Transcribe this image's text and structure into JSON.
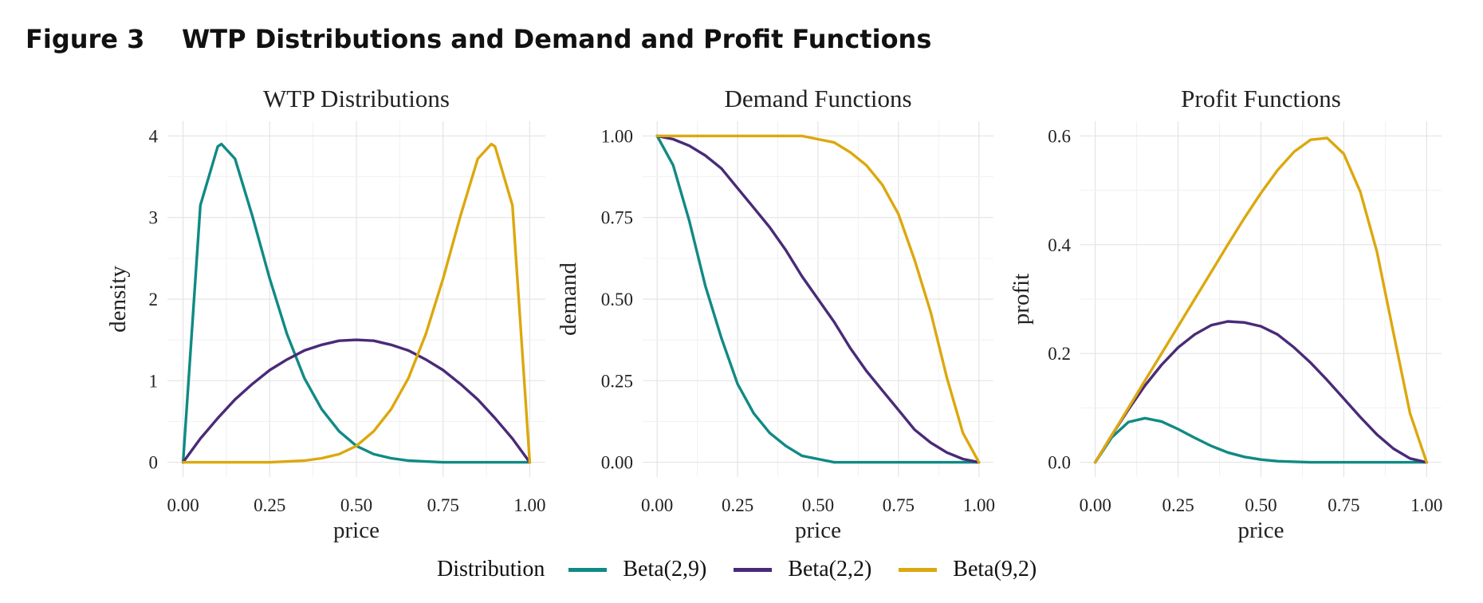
{
  "figure": {
    "number": "Figure 3",
    "title": "WTP Distributions and Demand and Profit Functions"
  },
  "legend": {
    "title": "Distribution",
    "entries": [
      {
        "label": "Beta(2,9)",
        "color": "#108A84"
      },
      {
        "label": "Beta(2,2)",
        "color": "#4A2A78"
      },
      {
        "label": "Beta(9,2)",
        "color": "#DCA80E"
      }
    ]
  },
  "chart_data": [
    {
      "type": "line",
      "title": "WTP Distributions",
      "xlabel": "price",
      "ylabel": "density",
      "xlim": [
        0,
        1
      ],
      "ylim": [
        0,
        4
      ],
      "xticks": [
        "0.00",
        "0.25",
        "0.50",
        "0.75",
        "1.00"
      ],
      "yticks": [
        "0",
        "1",
        "2",
        "3",
        "4"
      ],
      "grid": true,
      "x": [
        0,
        0.05,
        0.1,
        0.111,
        0.15,
        0.2,
        0.25,
        0.3,
        0.35,
        0.4,
        0.45,
        0.5,
        0.55,
        0.6,
        0.65,
        0.7,
        0.75,
        0.8,
        0.85,
        0.889,
        0.9,
        0.95,
        1
      ],
      "series": [
        {
          "name": "Beta(2,9)",
          "color": "#108A84",
          "values": [
            0,
            3.15,
            3.87,
            3.9,
            3.72,
            3.02,
            2.25,
            1.57,
            1.03,
            0.65,
            0.38,
            0.2,
            0.1,
            0.05,
            0.02,
            0.01,
            0.0,
            0.0,
            0.0,
            0.0,
            0.0,
            0.0,
            0
          ]
        },
        {
          "name": "Beta(2,2)",
          "color": "#4A2A78",
          "values": [
            0,
            0.29,
            0.54,
            0.59,
            0.77,
            0.96,
            1.13,
            1.26,
            1.37,
            1.44,
            1.49,
            1.5,
            1.49,
            1.44,
            1.37,
            1.26,
            1.13,
            0.96,
            0.77,
            0.59,
            0.54,
            0.29,
            0
          ]
        },
        {
          "name": "Beta(9,2)",
          "color": "#DCA80E",
          "values": [
            0,
            0.0,
            0.0,
            0.0,
            0.0,
            0.0,
            0.0,
            0.01,
            0.02,
            0.05,
            0.1,
            0.2,
            0.38,
            0.65,
            1.03,
            1.57,
            2.25,
            3.02,
            3.72,
            3.9,
            3.87,
            3.15,
            0
          ]
        }
      ]
    },
    {
      "type": "line",
      "title": "Demand Functions",
      "xlabel": "price",
      "ylabel": "demand",
      "xlim": [
        0,
        1
      ],
      "ylim": [
        0,
        1
      ],
      "xticks": [
        "0.00",
        "0.25",
        "0.50",
        "0.75",
        "1.00"
      ],
      "yticks": [
        "0.00",
        "0.25",
        "0.50",
        "0.75",
        "1.00"
      ],
      "grid": true,
      "x": [
        0,
        0.05,
        0.1,
        0.15,
        0.2,
        0.25,
        0.3,
        0.35,
        0.4,
        0.45,
        0.5,
        0.55,
        0.6,
        0.65,
        0.7,
        0.75,
        0.8,
        0.85,
        0.9,
        0.95,
        1
      ],
      "series": [
        {
          "name": "Beta(2,9)",
          "color": "#108A84",
          "values": [
            1,
            0.91,
            0.74,
            0.54,
            0.38,
            0.24,
            0.15,
            0.09,
            0.05,
            0.02,
            0.01,
            0.0,
            0.0,
            0.0,
            0.0,
            0.0,
            0.0,
            0.0,
            0.0,
            0.0,
            0
          ]
        },
        {
          "name": "Beta(2,2)",
          "color": "#4A2A78",
          "values": [
            1,
            0.99,
            0.97,
            0.94,
            0.9,
            0.84,
            0.78,
            0.72,
            0.65,
            0.57,
            0.5,
            0.43,
            0.35,
            0.28,
            0.22,
            0.16,
            0.1,
            0.06,
            0.03,
            0.01,
            0
          ]
        },
        {
          "name": "Beta(9,2)",
          "color": "#DCA80E",
          "values": [
            1,
            1.0,
            1.0,
            1.0,
            1.0,
            1.0,
            1.0,
            1.0,
            1.0,
            1.0,
            0.99,
            0.98,
            0.95,
            0.91,
            0.85,
            0.76,
            0.62,
            0.46,
            0.26,
            0.09,
            0
          ]
        }
      ]
    },
    {
      "type": "line",
      "title": "Profit Functions",
      "xlabel": "price",
      "ylabel": "profit",
      "xlim": [
        0,
        1
      ],
      "ylim": [
        0,
        0.6
      ],
      "xticks": [
        "0.00",
        "0.25",
        "0.50",
        "0.75",
        "1.00"
      ],
      "yticks": [
        "0.0",
        "0.2",
        "0.4",
        "0.6"
      ],
      "grid": true,
      "x": [
        0,
        0.05,
        0.1,
        0.15,
        0.2,
        0.25,
        0.3,
        0.35,
        0.4,
        0.45,
        0.5,
        0.55,
        0.6,
        0.65,
        0.7,
        0.75,
        0.8,
        0.85,
        0.9,
        0.95,
        1
      ],
      "series": [
        {
          "name": "Beta(2,9)",
          "color": "#108A84",
          "values": [
            0,
            0.046,
            0.074,
            0.081,
            0.075,
            0.061,
            0.045,
            0.03,
            0.018,
            0.01,
            0.005,
            0.002,
            0.001,
            0.0,
            0.0,
            0.0,
            0.0,
            0.0,
            0.0,
            0.0,
            0
          ]
        },
        {
          "name": "Beta(2,2)",
          "color": "#4A2A78",
          "values": [
            0,
            0.05,
            0.097,
            0.141,
            0.179,
            0.211,
            0.235,
            0.252,
            0.259,
            0.257,
            0.25,
            0.235,
            0.211,
            0.183,
            0.151,
            0.117,
            0.083,
            0.051,
            0.025,
            0.007,
            0
          ]
        },
        {
          "name": "Beta(9,2)",
          "color": "#DCA80E",
          "values": [
            0,
            0.05,
            0.1,
            0.15,
            0.2,
            0.25,
            0.3,
            0.35,
            0.4,
            0.449,
            0.495,
            0.537,
            0.571,
            0.593,
            0.596,
            0.567,
            0.497,
            0.387,
            0.238,
            0.09,
            0
          ]
        }
      ]
    }
  ]
}
